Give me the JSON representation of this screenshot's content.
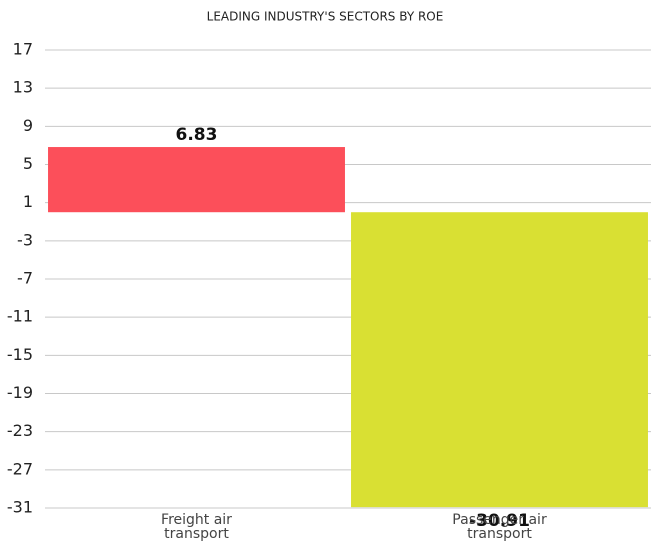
{
  "chart_data": {
    "type": "bar",
    "title": "LEADING INDUSTRY'S SECTORS BY ROE",
    "categories": [
      "Freight air transport",
      "Passenger air transport"
    ],
    "values": [
      6.83,
      -30.91
    ],
    "colors": [
      "#fc4f5a",
      "#d9e033"
    ],
    "ylim": [
      -31,
      17
    ],
    "yticks": [
      17,
      13,
      9,
      5,
      1,
      -3,
      -7,
      -11,
      -15,
      -19,
      -23,
      -27,
      -31
    ],
    "grid": true
  }
}
